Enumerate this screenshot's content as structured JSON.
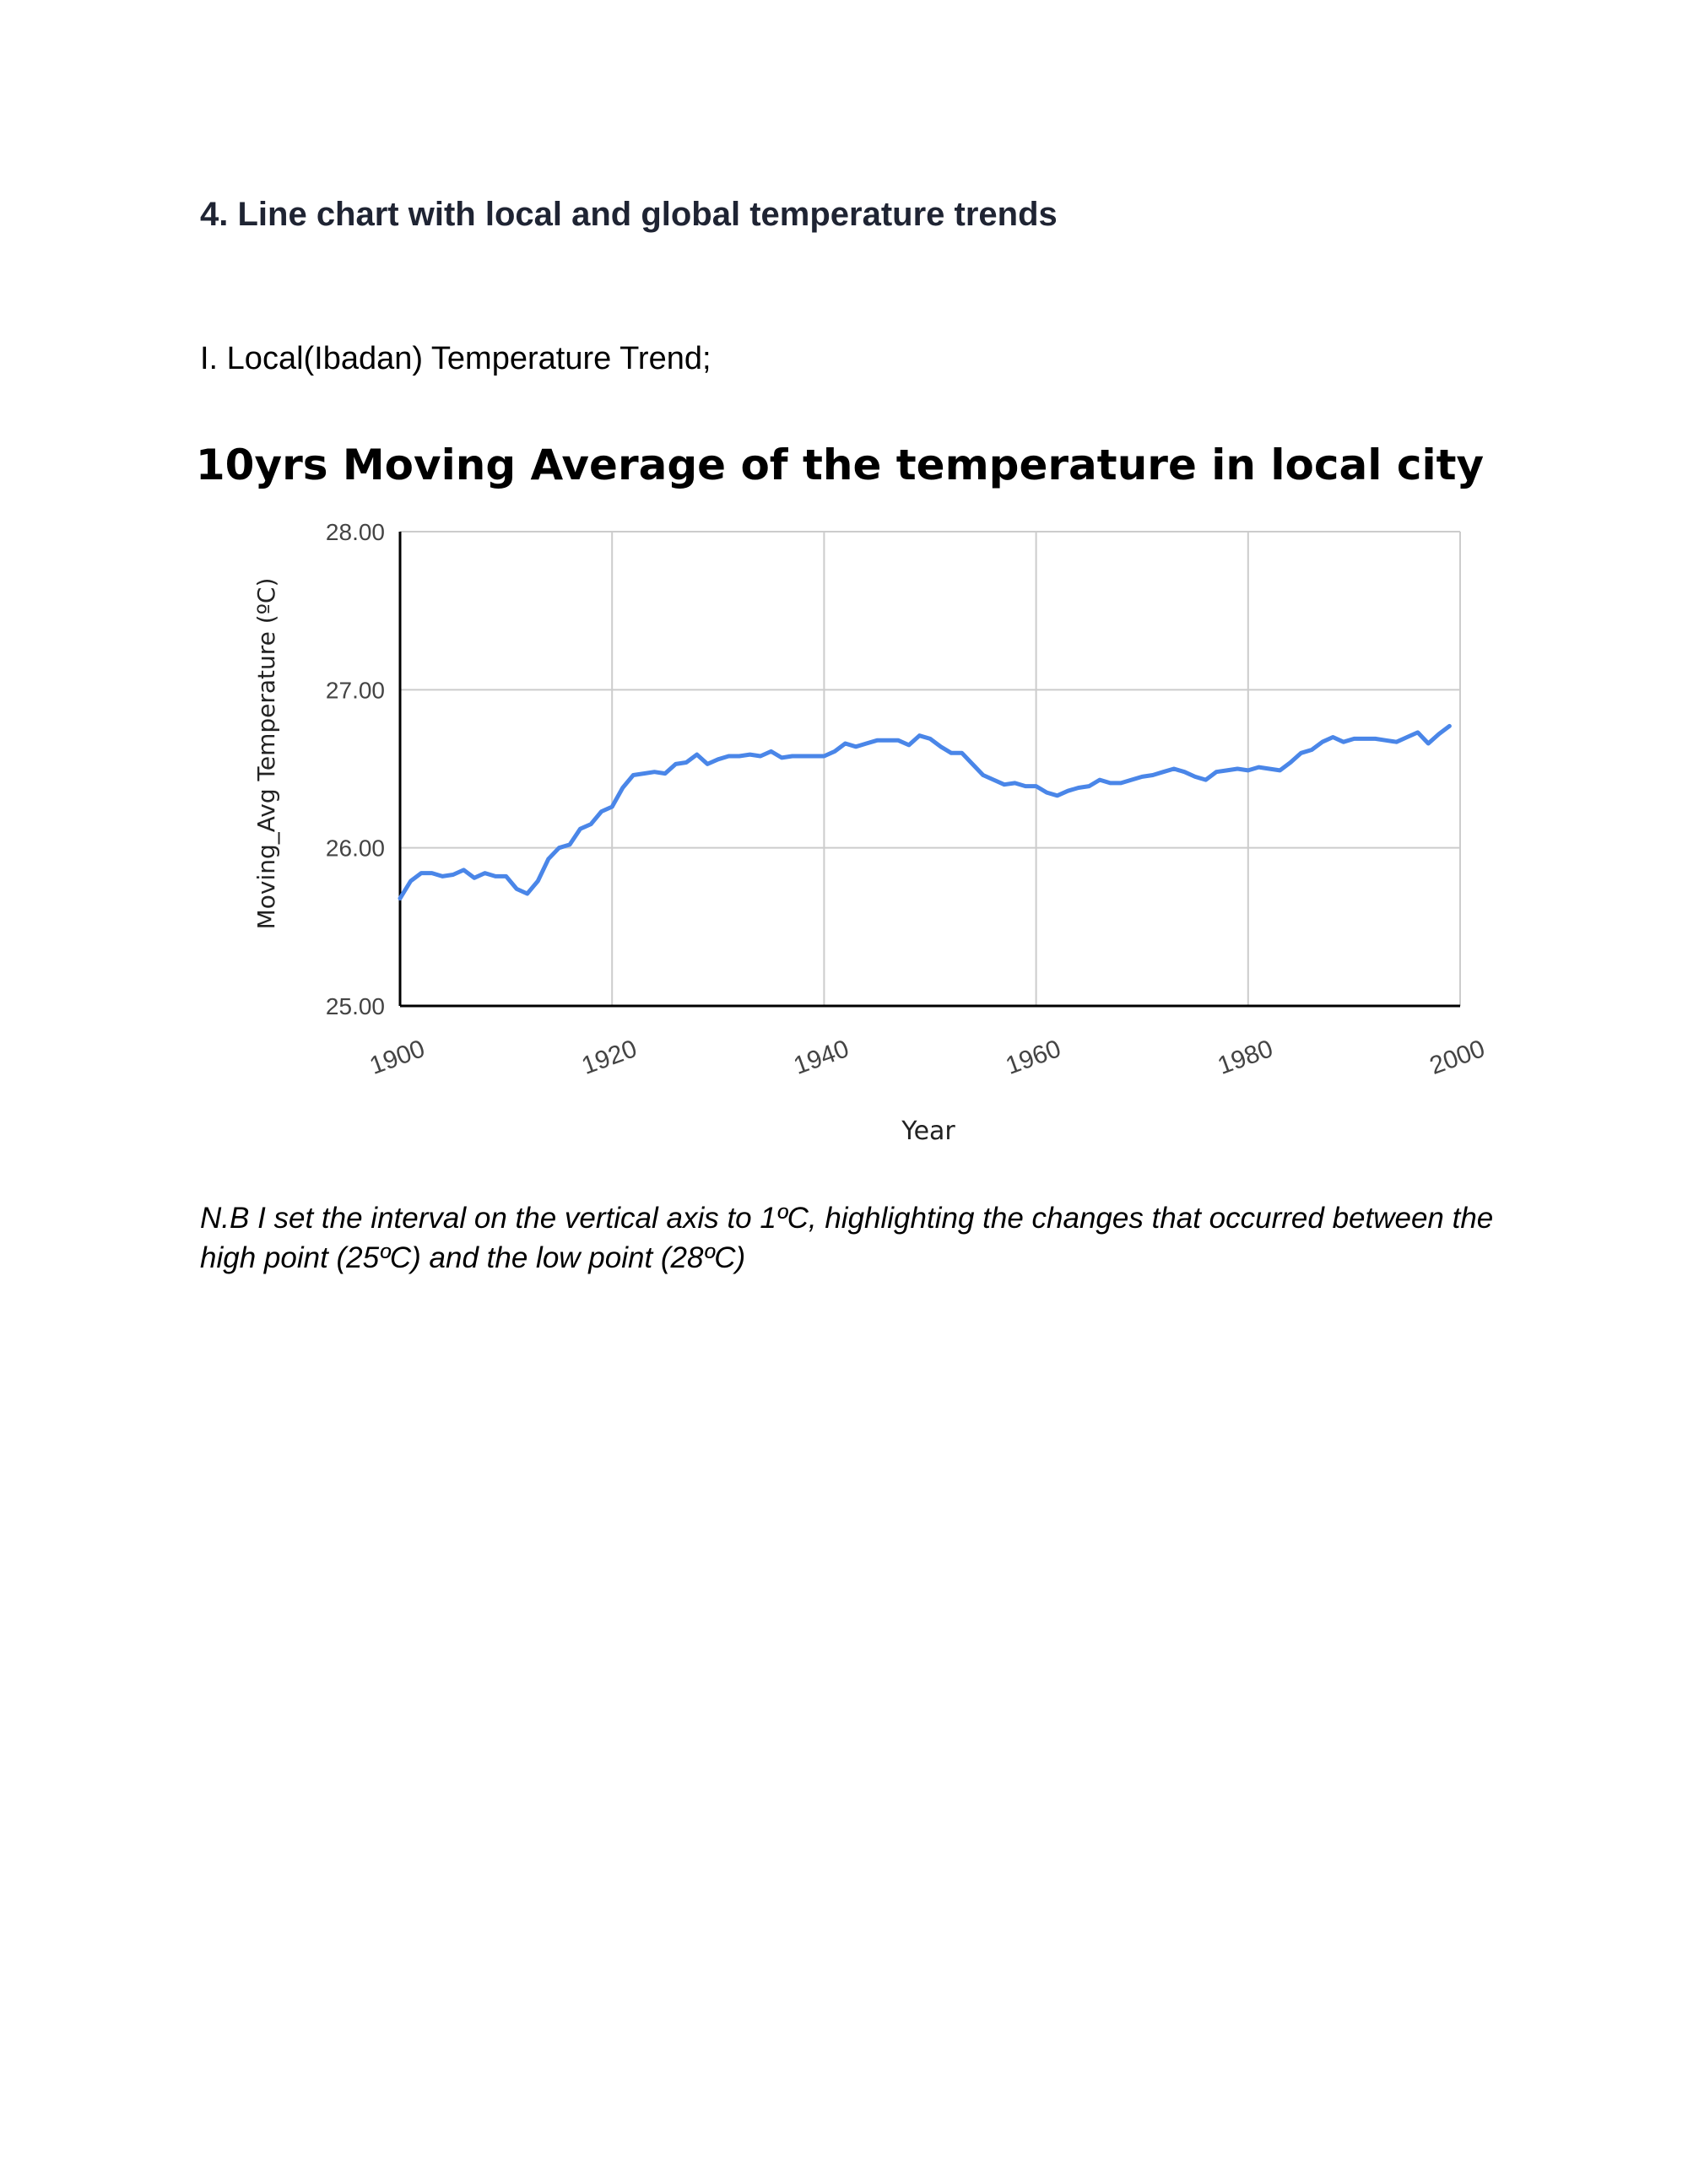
{
  "document": {
    "heading": "4. Line chart with local and global temperature trends",
    "subheading": "I. Local(Ibadan) Temperature Trend;",
    "note": "N.B I set the interval on the vertical axis to 1ºC, highlighting the changes that occurred between the high point (25ºC) and the low point (28ºC)"
  },
  "chart_data": {
    "type": "line",
    "title": "10yrs Moving Average of the temperature in local city",
    "xlabel": "Year",
    "ylabel": "Moving_Avg Temperature (ºC)",
    "xlim": [
      1900,
      2000
    ],
    "ylim": [
      25,
      28
    ],
    "x_ticks": [
      "1900",
      "1920",
      "1940",
      "1960",
      "1980",
      "2000"
    ],
    "y_ticks": [
      "25.00",
      "26.00",
      "27.00",
      "28.00"
    ],
    "grid": true,
    "legend": "none",
    "line_color": "#4a86e8",
    "series": [
      {
        "x": [
          1900,
          1901,
          1902,
          1903,
          1904,
          1905,
          1906,
          1907,
          1908,
          1909,
          1910,
          1911,
          1912,
          1913,
          1914,
          1915,
          1916,
          1917,
          1918,
          1919,
          1920,
          1921,
          1922,
          1923,
          1924,
          1925,
          1926,
          1927,
          1928,
          1929,
          1930,
          1931,
          1932,
          1933,
          1934,
          1935,
          1936,
          1937,
          1938,
          1939,
          1940,
          1941,
          1942,
          1943,
          1944,
          1945,
          1946,
          1947,
          1948,
          1949,
          1950,
          1951,
          1952,
          1953,
          1954,
          1955,
          1956,
          1957,
          1958,
          1959,
          1960,
          1961,
          1962,
          1963,
          1964,
          1965,
          1966,
          1967,
          1968,
          1969,
          1970,
          1971,
          1972,
          1973,
          1974,
          1975,
          1976,
          1977,
          1978,
          1979,
          1980,
          1981,
          1982,
          1983,
          1984,
          1985,
          1986,
          1987,
          1988,
          1989,
          1990,
          1991,
          1992,
          1993,
          1994,
          1995,
          1996,
          1997,
          1998,
          1999
        ],
        "values": [
          25.68,
          25.79,
          25.84,
          25.84,
          25.82,
          25.83,
          25.86,
          25.81,
          25.84,
          25.82,
          25.82,
          25.74,
          25.71,
          25.79,
          25.93,
          26.0,
          26.02,
          26.12,
          26.15,
          26.23,
          26.26,
          26.38,
          26.46,
          26.47,
          26.48,
          26.47,
          26.53,
          26.54,
          26.59,
          26.53,
          26.56,
          26.58,
          26.58,
          26.59,
          26.58,
          26.61,
          26.57,
          26.58,
          26.58,
          26.58,
          26.58,
          26.61,
          26.66,
          26.64,
          26.66,
          26.68,
          26.68,
          26.68,
          26.65,
          26.71,
          26.69,
          26.64,
          26.6,
          26.6,
          26.53,
          26.46,
          26.43,
          26.4,
          26.41,
          26.39,
          26.39,
          26.35,
          26.33,
          26.36,
          26.38,
          26.39,
          26.43,
          26.41,
          26.41,
          26.43,
          26.45,
          26.46,
          26.48,
          26.5,
          26.48,
          26.45,
          26.43,
          26.48,
          26.49,
          26.5,
          26.49,
          26.51,
          26.5,
          26.49,
          26.54,
          26.6,
          26.62,
          26.67,
          26.7,
          26.67,
          26.69,
          26.69,
          26.69,
          26.68,
          26.67,
          26.7,
          26.73,
          26.66,
          26.72,
          26.77
        ]
      }
    ]
  }
}
